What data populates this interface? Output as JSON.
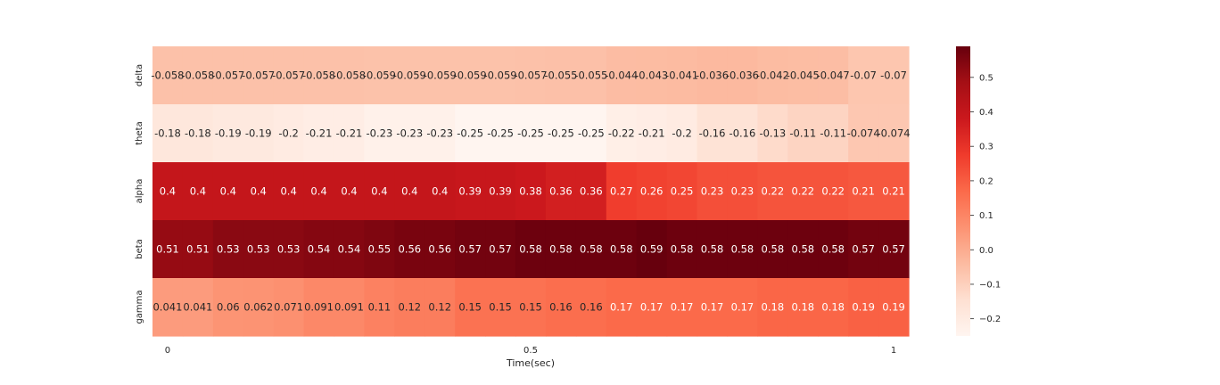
{
  "chart_data": {
    "type": "heatmap",
    "title": "",
    "xlabel": "Time(sec)",
    "ylabel": "",
    "rows": [
      "delta",
      "theta",
      "alpha",
      "beta",
      "gamma"
    ],
    "x_ticks": [
      {
        "label": "0",
        "value": 0
      },
      {
        "label": "0.5",
        "value": 0.5
      },
      {
        "label": "1",
        "value": 1
      }
    ],
    "x_range": [
      0,
      1
    ],
    "colormap": "Reds",
    "color_range": [
      -0.25,
      0.59
    ],
    "colorbar_ticks": [
      "0.5",
      "0.4",
      "0.3",
      "0.2",
      "0.1",
      "0.0",
      "−0.1",
      "−0.2"
    ],
    "colorbar_tick_values": [
      0.5,
      0.4,
      0.3,
      0.2,
      0.1,
      0.0,
      -0.1,
      -0.2
    ],
    "values": [
      [
        "-0.058",
        "-0.058",
        "-0.057",
        "-0.057",
        "-0.057",
        "-0.058",
        "-0.058",
        "-0.059",
        "-0.059",
        "-0.059",
        "-0.059",
        "-0.059",
        "-0.057",
        "-0.055",
        "-0.055",
        "-0.044",
        "-0.043",
        "-0.041",
        "-0.036",
        "-0.036",
        "-0.042",
        "-0.045",
        "-0.047",
        "-0.07",
        "-0.07"
      ],
      [
        "-0.18",
        "-0.18",
        "-0.19",
        "-0.19",
        "-0.2",
        "-0.21",
        "-0.21",
        "-0.23",
        "-0.23",
        "-0.23",
        "-0.25",
        "-0.25",
        "-0.25",
        "-0.25",
        "-0.25",
        "-0.22",
        "-0.21",
        "-0.2",
        "-0.16",
        "-0.16",
        "-0.13",
        "-0.11",
        "-0.11",
        "-0.074",
        "-0.074"
      ],
      [
        "0.4",
        "0.4",
        "0.4",
        "0.4",
        "0.4",
        "0.4",
        "0.4",
        "0.4",
        "0.4",
        "0.4",
        "0.39",
        "0.39",
        "0.38",
        "0.36",
        "0.36",
        "0.27",
        "0.26",
        "0.25",
        "0.23",
        "0.23",
        "0.22",
        "0.22",
        "0.22",
        "0.21",
        "0.21"
      ],
      [
        "0.51",
        "0.51",
        "0.53",
        "0.53",
        "0.53",
        "0.54",
        "0.54",
        "0.55",
        "0.56",
        "0.56",
        "0.57",
        "0.57",
        "0.58",
        "0.58",
        "0.58",
        "0.58",
        "0.59",
        "0.58",
        "0.58",
        "0.58",
        "0.58",
        "0.58",
        "0.58",
        "0.57",
        "0.57"
      ],
      [
        "0.041",
        "0.041",
        "0.06",
        "0.062",
        "0.071",
        "0.091",
        "0.091",
        "0.11",
        "0.12",
        "0.12",
        "0.15",
        "0.15",
        "0.15",
        "0.16",
        "0.16",
        "0.17",
        "0.17",
        "0.17",
        "0.17",
        "0.17",
        "0.18",
        "0.18",
        "0.18",
        "0.19",
        "0.19"
      ]
    ],
    "grid": false,
    "colorbar_position": "right"
  }
}
